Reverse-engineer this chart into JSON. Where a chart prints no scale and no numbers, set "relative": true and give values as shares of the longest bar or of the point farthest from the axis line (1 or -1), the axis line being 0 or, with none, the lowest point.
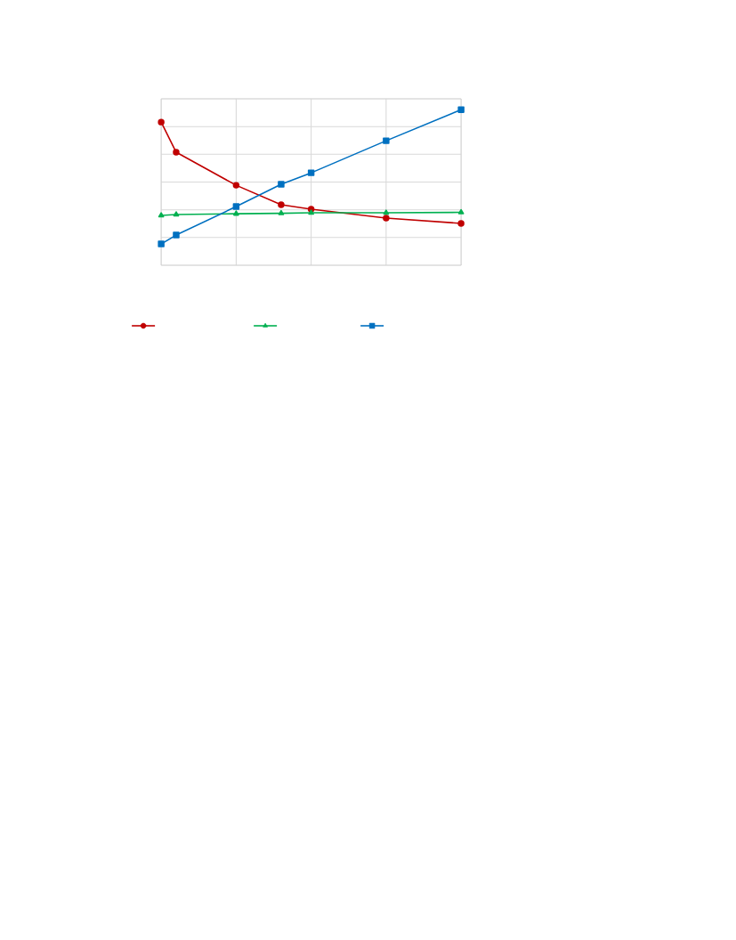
{
  "chart_data": {
    "type": "line",
    "relative": true,
    "categories": [
      null,
      null,
      null,
      null,
      null,
      null,
      null,
      null,
      null,
      null,
      null,
      null,
      null,
      null,
      null,
      null,
      null,
      null,
      null,
      null,
      null
    ],
    "grid": true,
    "series": [
      {
        "color": "#c00000",
        "marker": "circle",
        "values": [
          0.92,
          0.726,
          null,
          null,
          null,
          0.514,
          null,
          null,
          0.389,
          null,
          0.36,
          null,
          null,
          null,
          null,
          0.303,
          null,
          null,
          null,
          null,
          0.269
        ]
      },
      {
        "color": "#00b050",
        "marker": "triangle",
        "values": [
          0.32,
          0.326,
          null,
          null,
          null,
          0.331,
          null,
          null,
          0.334,
          null,
          0.337,
          null,
          null,
          null,
          null,
          0.337,
          null,
          null,
          null,
          null,
          0.34
        ]
      },
      {
        "color": "#0070c0",
        "marker": "square",
        "values": [
          0.137,
          0.194,
          null,
          null,
          null,
          0.377,
          null,
          null,
          0.52,
          null,
          0.594,
          null,
          null,
          null,
          null,
          0.8,
          null,
          null,
          null,
          null,
          1
        ]
      }
    ]
  }
}
